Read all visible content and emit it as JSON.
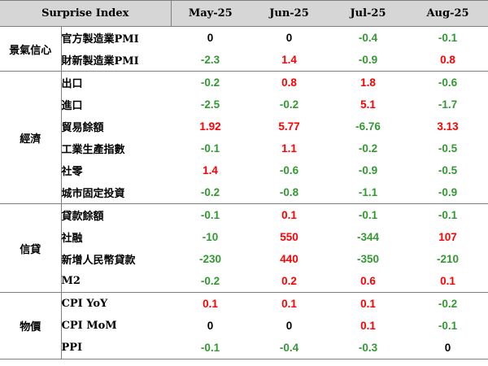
{
  "header": {
    "index_label": "Surprise Index",
    "months": [
      "May-25",
      "Jun-25",
      "Jul-25",
      "Aug-25"
    ]
  },
  "colors": {
    "positive": "#ff0000",
    "negative": "#339933",
    "zero": "#000000"
  },
  "groups": [
    {
      "category": "景氣信心",
      "rows": [
        {
          "indicator": "官方製造業PMI",
          "values": [
            "0",
            "0",
            "-0.4",
            "-0.1"
          ]
        },
        {
          "indicator": "財新製造業PMI",
          "values": [
            "-2.3",
            "1.4",
            "-0.9",
            "0.8"
          ]
        }
      ]
    },
    {
      "category": "經濟",
      "rows": [
        {
          "indicator": "出口",
          "values": [
            "-0.2",
            "0.8",
            "1.8",
            "-0.6"
          ]
        },
        {
          "indicator": "進口",
          "values": [
            "-2.5",
            "-0.2",
            "5.1",
            "-1.7"
          ]
        },
        {
          "indicator": "貿易餘額",
          "values": [
            "1.92",
            "5.77",
            "-6.76",
            "3.13"
          ]
        },
        {
          "indicator": "工業生產指數",
          "values": [
            "-0.1",
            "1.1",
            "-0.2",
            "-0.5"
          ]
        },
        {
          "indicator": "社零",
          "values": [
            "1.4",
            "-0.6",
            "-0.9",
            "-0.5"
          ]
        },
        {
          "indicator": "城市固定投資",
          "values": [
            "-0.2",
            "-0.8",
            "-1.1",
            "-0.9"
          ]
        }
      ]
    },
    {
      "category": "信貸",
      "rows": [
        {
          "indicator": "貸款餘額",
          "values": [
            "-0.1",
            "0.1",
            "-0.1",
            "-0.1"
          ]
        },
        {
          "indicator": "社融",
          "values": [
            "-10",
            "550",
            "-344",
            "107"
          ]
        },
        {
          "indicator": "新增人民幣貸款",
          "values": [
            "-230",
            "440",
            "-350",
            "-210"
          ]
        },
        {
          "indicator": "M2",
          "values": [
            "-0.2",
            "0.2",
            "0.6",
            "0.1"
          ]
        }
      ]
    },
    {
      "category": "物價",
      "rows": [
        {
          "indicator": "CPI YoY",
          "values": [
            "0.1",
            "0.1",
            "0.1",
            "-0.2"
          ]
        },
        {
          "indicator": "CPI MoM",
          "values": [
            "0",
            "0",
            "0.1",
            "-0.1"
          ]
        },
        {
          "indicator": "PPI",
          "values": [
            "-0.1",
            "-0.4",
            "-0.3",
            "0"
          ]
        }
      ]
    }
  ]
}
